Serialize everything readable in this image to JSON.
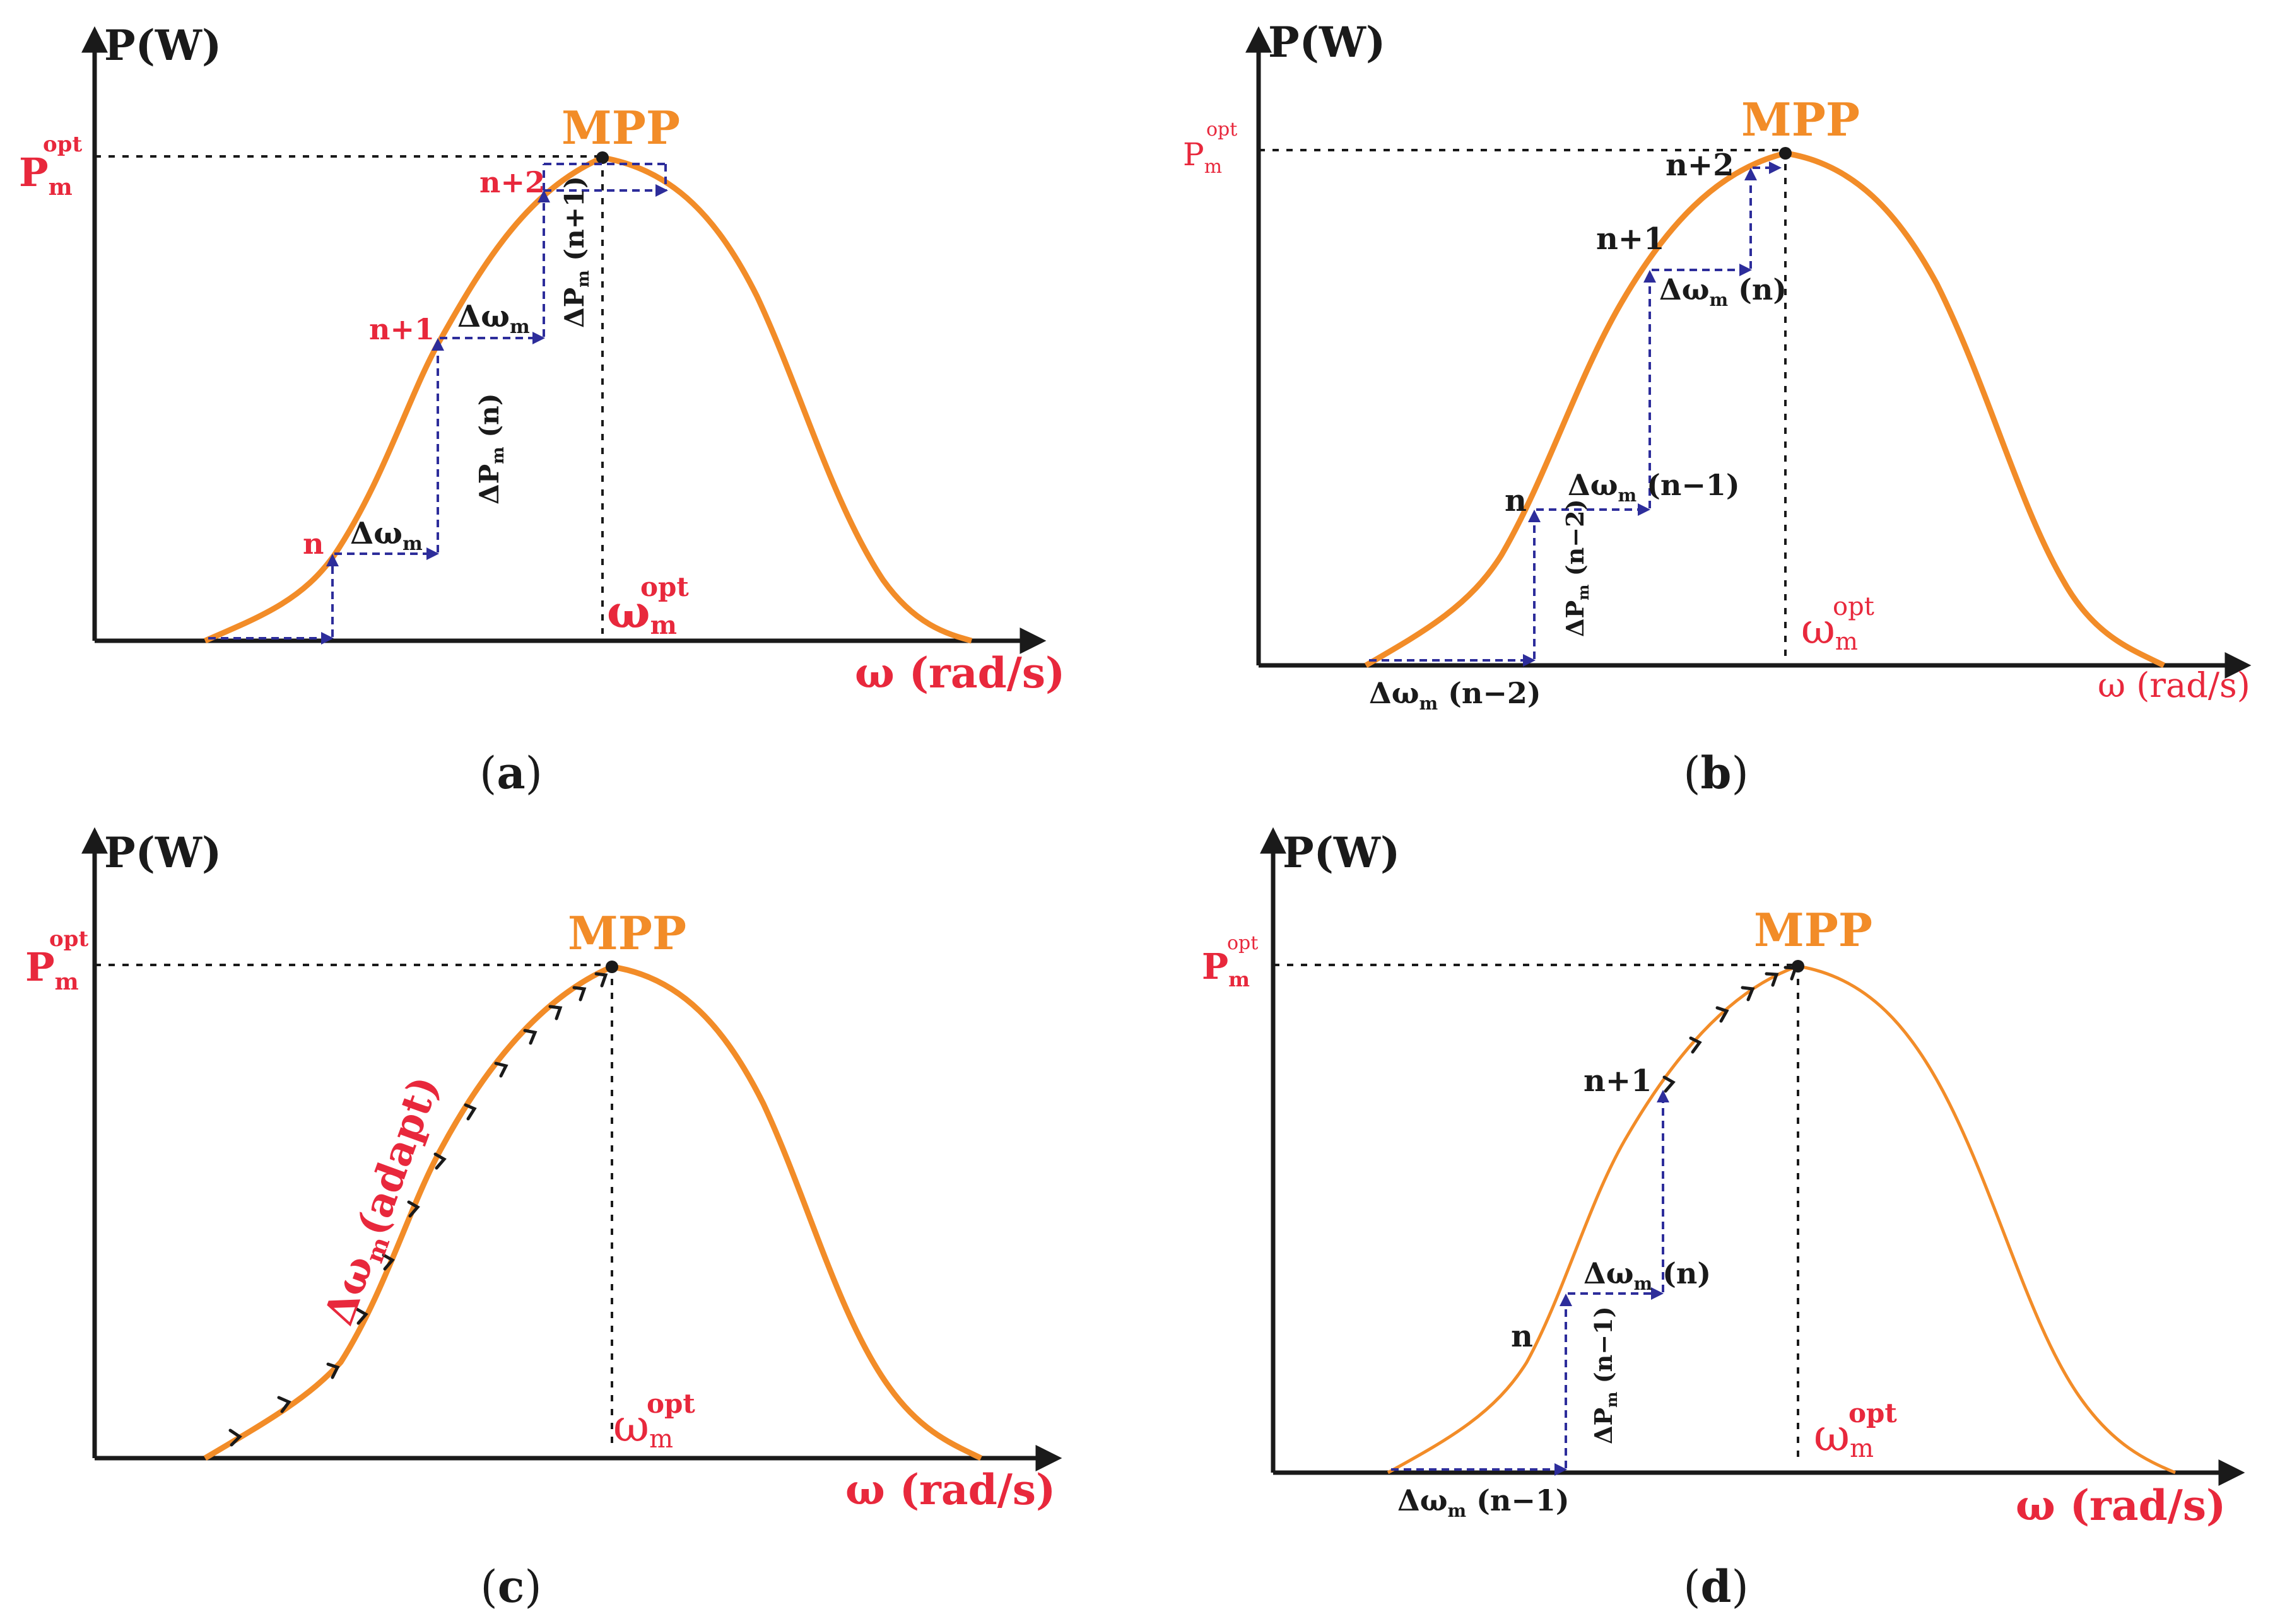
{
  "colors": {
    "curve": "#f28c28",
    "step": "#2d2d9b",
    "label_red": "#e8283c",
    "axis": "#1a1a1a"
  },
  "panels": [
    {
      "id": "a",
      "caption_open": "(",
      "caption_letter": "a",
      "caption_close": ")",
      "y_axis_label": "P(W)",
      "x_axis_label": "ω (rad/s)",
      "p_opt_main": "P",
      "p_opt_sub": "m",
      "p_opt_sup": "opt",
      "w_opt_main": "ω",
      "w_opt_sub": "m",
      "w_opt_sup": "opt",
      "mpp_label": "MPP",
      "step_labels": [
        "n",
        "n+1",
        "n+2"
      ],
      "delta_w": [
        {
          "main": "Δω",
          "sub": "m",
          "suffix": ""
        },
        {
          "main": "Δω",
          "sub": "m",
          "suffix": ""
        }
      ],
      "delta_p": [
        {
          "main": "ΔP",
          "sub": "m",
          "suffix": " (n)"
        },
        {
          "main": "ΔP",
          "sub": "m",
          "suffix": " (n+1)"
        }
      ]
    },
    {
      "id": "b",
      "caption_open": "(",
      "caption_letter": "b",
      "caption_close": ")",
      "y_axis_label": "P(W)",
      "x_axis_label": "ω (rad/s)",
      "p_opt_main": "P",
      "p_opt_sub": "m",
      "p_opt_sup": "opt",
      "w_opt_main": "ω",
      "w_opt_sub": "m",
      "w_opt_sup": "opt",
      "mpp_label": "MPP",
      "step_labels": [
        "n",
        "n+1",
        "n+2"
      ],
      "delta_w": [
        {
          "main": "Δω",
          "sub": "m",
          "suffix": " (n−2)"
        },
        {
          "main": "Δω",
          "sub": "m",
          "suffix": " (n−1)"
        },
        {
          "main": "Δω",
          "sub": "m",
          "suffix": " (n)"
        }
      ],
      "delta_p": [
        {
          "main": "ΔP",
          "sub": "m",
          "suffix": " (n−2)"
        }
      ]
    },
    {
      "id": "c",
      "caption_open": "(",
      "caption_letter": "c",
      "caption_close": ")",
      "y_axis_label": "P(W)",
      "x_axis_label": "ω (rad/s)",
      "p_opt_main": "P",
      "p_opt_sub": "m",
      "p_opt_sup": "opt",
      "w_opt_main": "ω",
      "w_opt_sub": "m",
      "w_opt_sup": "opt",
      "mpp_label": "MPP",
      "adapt_main": "Δω",
      "adapt_sub": "m",
      "adapt_suffix": "(adapt)"
    },
    {
      "id": "d",
      "caption_open": "(",
      "caption_letter": "d",
      "caption_close": ")",
      "y_axis_label": "P(W)",
      "x_axis_label": "ω (rad/s)",
      "p_opt_main": "P",
      "p_opt_sub": "m",
      "p_opt_sup": "opt",
      "w_opt_main": "ω",
      "w_opt_sub": "m",
      "w_opt_sup": "opt",
      "mpp_label": "MPP",
      "step_labels": [
        "n",
        "n+1"
      ],
      "delta_w": [
        {
          "main": "Δω",
          "sub": "m",
          "suffix": " (n−1)"
        },
        {
          "main": "Δω",
          "sub": "m",
          "suffix": " (n)"
        }
      ],
      "delta_p": [
        {
          "main": "ΔP",
          "sub": "m",
          "suffix": " (n−1)"
        }
      ]
    }
  ]
}
